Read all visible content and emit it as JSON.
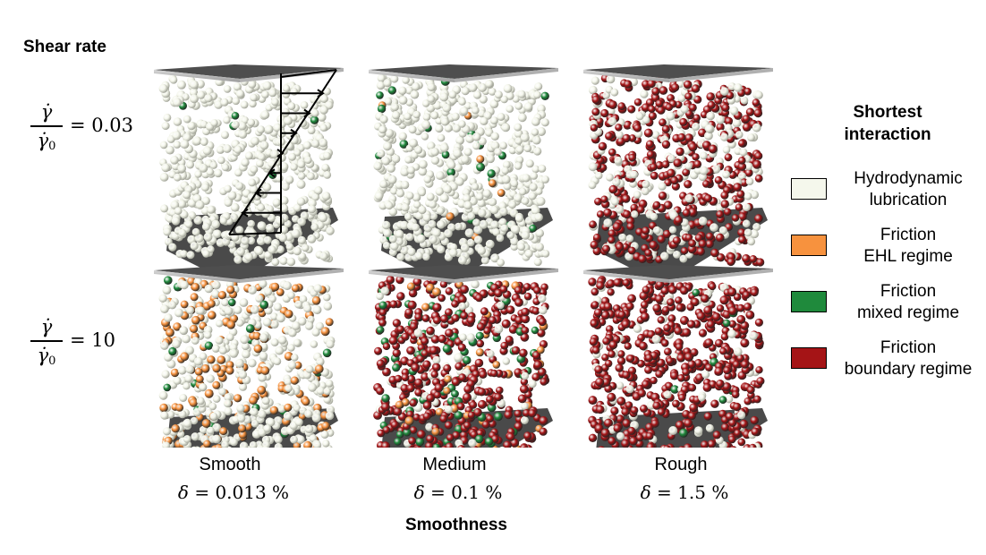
{
  "row_header": "Shear rate",
  "rows": [
    {
      "eq": "= 0.03"
    },
    {
      "eq": "= 10"
    }
  ],
  "rate_symbol": {
    "num": "γ̇",
    "den": "γ̇",
    "den_sub": "0"
  },
  "columns": [
    {
      "name": "Smooth",
      "delta_value": "= 0.013 %"
    },
    {
      "name": "Medium",
      "delta_value": "= 0.1 %"
    },
    {
      "name": "Rough",
      "delta_value": "= 1.5 %"
    }
  ],
  "delta_symbol": "δ",
  "x_title": "Smoothness",
  "legend": {
    "title_line1": "Shortest",
    "title_line2": "interaction",
    "items": [
      {
        "line1": "Hydrodynamic",
        "line2": "lubrication",
        "color": "#f5f7ec"
      },
      {
        "line1": "Friction",
        "line2": "EHL regime",
        "color": "#f7923e"
      },
      {
        "line1": "Friction",
        "line2": "mixed regime",
        "color": "#1f8a3c"
      },
      {
        "line1": "Friction",
        "line2": "boundary regime",
        "color": "#a51416"
      }
    ]
  },
  "cubes": [
    {
      "row": 0,
      "col": 0,
      "fractions": [
        0.99,
        0.0,
        0.01,
        0.0
      ],
      "velocity_profile": true
    },
    {
      "row": 0,
      "col": 1,
      "fractions": [
        0.96,
        0.01,
        0.03,
        0.0
      ]
    },
    {
      "row": 0,
      "col": 2,
      "fractions": [
        0.35,
        0.0,
        0.0,
        0.65
      ]
    },
    {
      "row": 1,
      "col": 0,
      "fractions": [
        0.7,
        0.28,
        0.02,
        0.0
      ]
    },
    {
      "row": 1,
      "col": 1,
      "fractions": [
        0.1,
        0.05,
        0.15,
        0.7
      ]
    },
    {
      "row": 1,
      "col": 2,
      "fractions": [
        0.12,
        0.0,
        0.01,
        0.87
      ]
    }
  ]
}
